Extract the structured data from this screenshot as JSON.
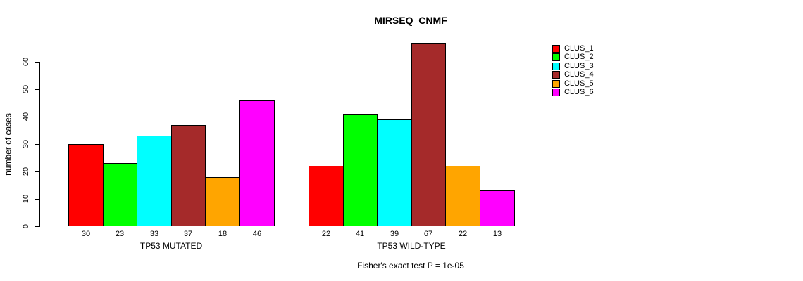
{
  "chart_data": {
    "type": "bar",
    "title": "MIRSEQ_CNMF",
    "ylabel": "number of cases",
    "xlabel": "",
    "caption": "Fisher's exact test P = 1e-05",
    "categories": [
      "TP53 MUTATED",
      "TP53 WILD-TYPE"
    ],
    "series": [
      {
        "name": "CLUS_1",
        "color": "#FF0000",
        "values": [
          30,
          22
        ]
      },
      {
        "name": "CLUS_2",
        "color": "#00FF00",
        "values": [
          23,
          41
        ]
      },
      {
        "name": "CLUS_3",
        "color": "#00FFFF",
        "values": [
          33,
          39
        ]
      },
      {
        "name": "CLUS_4",
        "color": "#A52A2A",
        "values": [
          37,
          67
        ]
      },
      {
        "name": "CLUS_5",
        "color": "#FFA500",
        "values": [
          18,
          22
        ]
      },
      {
        "name": "CLUS_6",
        "color": "#FF00FF",
        "values": [
          46,
          13
        ]
      }
    ],
    "bar_value_labels": [
      [
        30,
        23,
        33,
        37,
        18,
        46
      ],
      [
        22,
        41,
        39,
        67,
        22,
        13
      ]
    ],
    "yticks": [
      0,
      10,
      20,
      30,
      40,
      50,
      60
    ],
    "ylim": [
      0,
      67
    ],
    "grid": false,
    "legend_position": "right-inside",
    "axis_color": "#000000",
    "background_color": "#FFFFFF"
  }
}
